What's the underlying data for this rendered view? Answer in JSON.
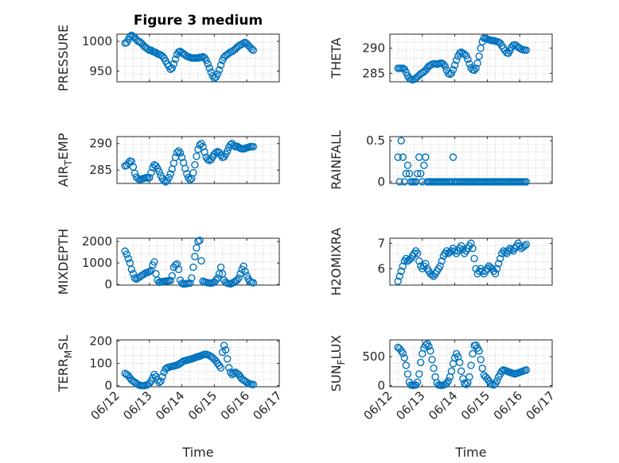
{
  "figure_title": "Figure 3 medium",
  "shared_x": {
    "label": "Time",
    "ticks": [
      "06/12",
      "06/13",
      "06/14",
      "06/15",
      "06/16",
      "06/17"
    ],
    "min": 0,
    "max": 5
  },
  "marker_color": "#0072BD",
  "chart_data": [
    {
      "id": "pressure",
      "type": "scatter",
      "ylabel": "PRESSURE",
      "title": "Figure 3 medium",
      "ylim": [
        932,
        1012
      ],
      "yticks": [
        950,
        1000
      ],
      "grid": true,
      "x": [
        0.25,
        0.3,
        0.35,
        0.4,
        0.45,
        0.5,
        0.55,
        0.6,
        0.65,
        0.7,
        0.75,
        0.8,
        0.85,
        0.9,
        0.95,
        1.0,
        1.05,
        1.1,
        1.15,
        1.2,
        1.25,
        1.3,
        1.35,
        1.4,
        1.45,
        1.5,
        1.55,
        1.6,
        1.65,
        1.7,
        1.75,
        1.8,
        1.85,
        1.9,
        1.95,
        2.0,
        2.05,
        2.1,
        2.15,
        2.2,
        2.25,
        2.3,
        2.35,
        2.4,
        2.45,
        2.5,
        2.55,
        2.6,
        2.65,
        2.7,
        2.75,
        2.8,
        2.85,
        2.9,
        2.95,
        3.0,
        3.05,
        3.1,
        3.15,
        3.2,
        3.25,
        3.3,
        3.35,
        3.4,
        3.45,
        3.5,
        3.55,
        3.6,
        3.65,
        3.7,
        3.75,
        3.8,
        3.85,
        3.9,
        3.95,
        4.0,
        4.05,
        4.1,
        4.15,
        4.2
      ],
      "y": [
        997,
        998,
        1003,
        1008,
        1010,
        1008,
        1006,
        1003,
        1000,
        999,
        997,
        994,
        991,
        989,
        987,
        985,
        985,
        983,
        982,
        981,
        979,
        978,
        977,
        975,
        972,
        967,
        962,
        958,
        953,
        955,
        962,
        970,
        978,
        982,
        983,
        981,
        979,
        977,
        975,
        974,
        973,
        972,
        972,
        972,
        972,
        972,
        973,
        973,
        974,
        972,
        968,
        962,
        955,
        948,
        942,
        938,
        940,
        945,
        952,
        960,
        968,
        973,
        976,
        978,
        980,
        982,
        983,
        985,
        987,
        990,
        992,
        994,
        995,
        997,
        998,
        996,
        993,
        990,
        987,
        985
      ]
    },
    {
      "id": "theta",
      "type": "scatter",
      "ylabel": "THETA",
      "ylim": [
        283.3,
        292.8
      ],
      "yticks": [
        285,
        290
      ],
      "grid": true,
      "x": [
        0.25,
        0.3,
        0.35,
        0.4,
        0.45,
        0.5,
        0.55,
        0.6,
        0.65,
        0.7,
        0.75,
        0.8,
        0.85,
        0.9,
        0.95,
        1.0,
        1.05,
        1.1,
        1.15,
        1.2,
        1.25,
        1.3,
        1.35,
        1.4,
        1.45,
        1.5,
        1.55,
        1.6,
        1.65,
        1.7,
        1.75,
        1.8,
        1.85,
        1.9,
        1.95,
        2.0,
        2.05,
        2.1,
        2.15,
        2.2,
        2.25,
        2.3,
        2.35,
        2.4,
        2.45,
        2.5,
        2.55,
        2.6,
        2.65,
        2.7,
        2.75,
        2.8,
        2.85,
        2.9,
        2.95,
        3.0,
        3.05,
        3.1,
        3.15,
        3.2,
        3.25,
        3.3,
        3.35,
        3.4,
        3.45,
        3.5,
        3.55,
        3.6,
        3.65,
        3.7,
        3.75,
        3.8,
        3.85,
        3.9,
        3.95,
        4.0,
        4.05,
        4.1,
        4.15,
        4.2
      ],
      "y": [
        286,
        286,
        286,
        286,
        285.8,
        285.2,
        284.5,
        284,
        283.8,
        283.7,
        283.8,
        284,
        284.3,
        284.6,
        284.9,
        285.1,
        285.3,
        285.6,
        286,
        286.4,
        286.6,
        286.8,
        286.9,
        286.9,
        286.8,
        286.9,
        287,
        287,
        286.8,
        286.4,
        285.6,
        285,
        284.8,
        285,
        285.7,
        286.6,
        287.6,
        288.4,
        289,
        289.2,
        289,
        288.8,
        288.5,
        287.8,
        286.9,
        286.1,
        285.7,
        285.6,
        286,
        287,
        288.4,
        290,
        291.3,
        292,
        291.9,
        291.8,
        291.7,
        291.6,
        291.5,
        291.5,
        291.4,
        291.3,
        291.2,
        291,
        290.5,
        290,
        289.5,
        289.1,
        289,
        289.5,
        290.2,
        290.6,
        290.7,
        290.5,
        290.2,
        290,
        289.8,
        289.7,
        289.6,
        289.6
      ]
    },
    {
      "id": "air_temp",
      "type": "scatter",
      "ylabel": "AIR_TEMP",
      "ylim": [
        282.5,
        291.3
      ],
      "yticks": [
        285,
        290
      ],
      "grid": true,
      "x": [
        0.25,
        0.3,
        0.35,
        0.4,
        0.45,
        0.5,
        0.55,
        0.6,
        0.65,
        0.7,
        0.75,
        0.8,
        0.85,
        0.9,
        0.95,
        1.0,
        1.05,
        1.1,
        1.15,
        1.2,
        1.25,
        1.3,
        1.35,
        1.4,
        1.45,
        1.5,
        1.55,
        1.6,
        1.65,
        1.7,
        1.75,
        1.8,
        1.85,
        1.9,
        1.95,
        2.0,
        2.05,
        2.1,
        2.15,
        2.2,
        2.25,
        2.3,
        2.35,
        2.4,
        2.45,
        2.5,
        2.55,
        2.6,
        2.65,
        2.7,
        2.75,
        2.8,
        2.85,
        2.9,
        2.95,
        3.0,
        3.05,
        3.1,
        3.15,
        3.2,
        3.25,
        3.3,
        3.35,
        3.4,
        3.45,
        3.5,
        3.55,
        3.6,
        3.65,
        3.7,
        3.75,
        3.8,
        3.85,
        3.9,
        3.95,
        4.0,
        4.05,
        4.1,
        4.15,
        4.2
      ],
      "y": [
        285.8,
        285.9,
        286.3,
        286.7,
        286.6,
        285.6,
        284.4,
        283.7,
        283.4,
        283.2,
        283.3,
        283.4,
        283.5,
        283.6,
        283.5,
        283.6,
        284.5,
        285.5,
        286,
        285.8,
        285.3,
        284.7,
        284,
        283.4,
        283,
        282.8,
        283,
        283.6,
        284.3,
        285.2,
        286.3,
        287.4,
        288.3,
        288.6,
        288.2,
        287.4,
        286.4,
        285.3,
        284.3,
        283.6,
        283.2,
        283.4,
        284.5,
        286,
        287.6,
        288.9,
        289.7,
        290,
        289.4,
        288.4,
        287.4,
        287,
        286.8,
        287,
        287.5,
        288,
        288.3,
        288.5,
        288.3,
        287.8,
        287.4,
        287.5,
        288,
        288.6,
        289.3,
        289.8,
        290,
        289.6,
        289.4,
        289.5,
        289.3,
        289.1,
        289,
        289,
        289.1,
        289.2,
        289.3,
        289.4,
        289.4,
        289.4
      ]
    },
    {
      "id": "rainfall",
      "type": "scatter",
      "ylabel": "RAINFALL",
      "ylim": [
        -0.02,
        0.55
      ],
      "yticks": [
        0,
        0.5
      ],
      "ytick_labels": [
        "0",
        "0.5"
      ],
      "grid": true,
      "x": [
        0.25,
        0.3,
        0.35,
        0.4,
        0.45,
        0.5,
        0.55,
        0.6,
        0.65,
        0.7,
        0.75,
        0.8,
        0.85,
        0.9,
        0.95,
        1.0,
        1.05,
        1.1,
        1.15,
        1.2,
        1.25,
        1.3,
        1.35,
        1.4,
        1.45,
        1.5,
        1.55,
        1.6,
        1.65,
        1.7,
        1.75,
        1.8,
        1.85,
        1.9,
        1.95,
        2.0,
        2.05,
        2.1,
        2.15,
        2.2,
        2.25,
        2.3,
        2.35,
        2.4,
        2.45,
        2.5,
        2.55,
        2.6,
        2.65,
        2.7,
        2.75,
        2.8,
        2.85,
        2.9,
        2.95,
        3.0,
        3.05,
        3.1,
        3.15,
        3.2,
        3.25,
        3.3,
        3.35,
        3.4,
        3.45,
        3.5,
        3.55,
        3.6,
        3.65,
        3.7,
        3.75,
        3.8,
        3.85,
        3.9,
        3.95,
        4.0,
        4.05,
        4.1,
        4.15,
        4.2
      ],
      "y": [
        0.3,
        0,
        0.5,
        0.3,
        0,
        0.1,
        0.2,
        0.1,
        0,
        0,
        0,
        0,
        0.1,
        0.3,
        0.1,
        0,
        0.2,
        0.3,
        0,
        0,
        0,
        0,
        0,
        0,
        0,
        0,
        0,
        0,
        0,
        0,
        0,
        0,
        0,
        0,
        0.3,
        0,
        0,
        0,
        0,
        0,
        0,
        0,
        0,
        0,
        0,
        0,
        0,
        0,
        0,
        0,
        0,
        0,
        0,
        0,
        0,
        0,
        0,
        0,
        0,
        0,
        0,
        0,
        0,
        0,
        0,
        0,
        0,
        0,
        0,
        0,
        0,
        0,
        0,
        0,
        0,
        0,
        0,
        0,
        0,
        0
      ]
    },
    {
      "id": "mixdepth",
      "type": "scatter",
      "ylabel": "MIXDEPTH",
      "ylim": [
        -30,
        2150
      ],
      "yticks": [
        0,
        1000,
        2000
      ],
      "grid": true,
      "x": [
        0.25,
        0.3,
        0.35,
        0.4,
        0.45,
        0.5,
        0.55,
        0.6,
        0.65,
        0.7,
        0.75,
        0.8,
        0.85,
        0.9,
        0.95,
        1.0,
        1.05,
        1.1,
        1.15,
        1.2,
        1.25,
        1.3,
        1.35,
        1.4,
        1.45,
        1.5,
        1.55,
        1.6,
        1.65,
        1.7,
        1.75,
        1.8,
        1.85,
        1.9,
        1.95,
        2.0,
        2.05,
        2.1,
        2.15,
        2.2,
        2.25,
        2.3,
        2.35,
        2.4,
        2.45,
        2.5,
        2.55,
        2.6,
        2.65,
        2.7,
        2.75,
        2.8,
        2.85,
        2.9,
        2.95,
        3.0,
        3.05,
        3.1,
        3.15,
        3.2,
        3.25,
        3.3,
        3.35,
        3.4,
        3.45,
        3.5,
        3.55,
        3.6,
        3.65,
        3.7,
        3.75,
        3.8,
        3.85,
        3.9,
        3.95,
        4.0,
        4.05,
        4.1,
        4.15,
        4.2
      ],
      "y": [
        1550,
        1400,
        1200,
        1000,
        700,
        500,
        300,
        250,
        300,
        350,
        400,
        450,
        500,
        550,
        560,
        600,
        650,
        900,
        1050,
        500,
        200,
        100,
        120,
        130,
        140,
        150,
        160,
        170,
        180,
        400,
        800,
        900,
        950,
        700,
        200,
        50,
        20,
        30,
        40,
        50,
        60,
        300,
        800,
        1300,
        1700,
        2000,
        2050,
        1100,
        150,
        120,
        100,
        80,
        70,
        60,
        80,
        120,
        200,
        300,
        500,
        800,
        500,
        200,
        100,
        60,
        40,
        30,
        60,
        100,
        150,
        200,
        300,
        500,
        700,
        850,
        600,
        400,
        250,
        150,
        100,
        80
      ]
    },
    {
      "id": "h2omixra",
      "type": "scatter",
      "ylabel": "H2OMIXRA",
      "ylim": [
        5.35,
        7.2
      ],
      "yticks": [
        6,
        7
      ],
      "grid": true,
      "x": [
        0.25,
        0.3,
        0.35,
        0.4,
        0.45,
        0.5,
        0.55,
        0.6,
        0.65,
        0.7,
        0.75,
        0.8,
        0.85,
        0.9,
        0.95,
        1.0,
        1.05,
        1.1,
        1.15,
        1.2,
        1.25,
        1.3,
        1.35,
        1.4,
        1.45,
        1.5,
        1.55,
        1.6,
        1.65,
        1.7,
        1.75,
        1.8,
        1.85,
        1.9,
        1.95,
        2.0,
        2.05,
        2.1,
        2.15,
        2.2,
        2.25,
        2.3,
        2.35,
        2.4,
        2.45,
        2.5,
        2.55,
        2.6,
        2.65,
        2.7,
        2.75,
        2.8,
        2.85,
        2.9,
        2.95,
        3.0,
        3.05,
        3.1,
        3.15,
        3.2,
        3.25,
        3.3,
        3.35,
        3.4,
        3.45,
        3.5,
        3.55,
        3.6,
        3.65,
        3.7,
        3.75,
        3.8,
        3.85,
        3.9,
        3.95,
        4.0,
        4.05,
        4.1,
        4.15,
        4.2
      ],
      "y": [
        5.5,
        5.7,
        5.9,
        6.1,
        6.3,
        6.4,
        6.3,
        6.35,
        6.4,
        6.5,
        6.6,
        6.7,
        6.6,
        6.3,
        6.1,
        6,
        6.1,
        6.2,
        6,
        5.9,
        5.8,
        5.75,
        5.7,
        5.8,
        5.9,
        6,
        6.1,
        6.3,
        6.5,
        6.6,
        6.7,
        6.6,
        6.65,
        6.7,
        6.8,
        6.7,
        6.6,
        6.7,
        6.8,
        6.9,
        6.75,
        6.6,
        6.7,
        6.8,
        6.9,
        7,
        6.8,
        6.4,
        6,
        5.8,
        5.9,
        6,
        5.9,
        5.8,
        5.9,
        6,
        6.1,
        6.05,
        6,
        5.9,
        5.8,
        6,
        6.2,
        6.4,
        6.6,
        6.7,
        6.65,
        6.6,
        6.7,
        6.8,
        6.75,
        6.7,
        6.8,
        6.9,
        7,
        6.9,
        6.8,
        6.85,
        6.9,
        6.95
      ]
    },
    {
      "id": "terr_msl",
      "type": "scatter",
      "ylabel": "TERR_MSL",
      "ylim": [
        -5,
        205
      ],
      "yticks": [
        0,
        100,
        200
      ],
      "grid": true,
      "x": [
        0.25,
        0.3,
        0.35,
        0.4,
        0.45,
        0.5,
        0.55,
        0.6,
        0.65,
        0.7,
        0.75,
        0.8,
        0.85,
        0.9,
        0.95,
        1.0,
        1.05,
        1.1,
        1.15,
        1.2,
        1.25,
        1.3,
        1.35,
        1.4,
        1.45,
        1.5,
        1.55,
        1.6,
        1.65,
        1.7,
        1.75,
        1.8,
        1.85,
        1.9,
        1.95,
        2.0,
        2.05,
        2.1,
        2.15,
        2.2,
        2.25,
        2.3,
        2.35,
        2.4,
        2.45,
        2.5,
        2.55,
        2.6,
        2.65,
        2.7,
        2.75,
        2.8,
        2.85,
        2.9,
        2.95,
        3.0,
        3.05,
        3.1,
        3.15,
        3.2,
        3.25,
        3.3,
        3.35,
        3.4,
        3.45,
        3.5,
        3.55,
        3.6,
        3.65,
        3.7,
        3.75,
        3.8,
        3.85,
        3.9,
        3.95,
        4.0,
        4.05,
        4.1,
        4.15,
        4.2
      ],
      "y": [
        55,
        50,
        45,
        35,
        25,
        20,
        15,
        10,
        5,
        2,
        0,
        0,
        0,
        2,
        5,
        10,
        20,
        35,
        50,
        40,
        25,
        15,
        20,
        40,
        60,
        75,
        80,
        82,
        85,
        87,
        88,
        90,
        92,
        95,
        100,
        105,
        110,
        112,
        114,
        116,
        118,
        120,
        122,
        125,
        128,
        130,
        132,
        135,
        138,
        140,
        140,
        138,
        135,
        130,
        125,
        118,
        110,
        100,
        90,
        80,
        150,
        180,
        160,
        120,
        80,
        60,
        50,
        55,
        60,
        55,
        50,
        40,
        30,
        25,
        20,
        15,
        10,
        8,
        6,
        5
      ]
    },
    {
      "id": "sun_flux",
      "type": "scatter",
      "ylabel": "SUN_FLUX",
      "ylim": [
        -20,
        790
      ],
      "yticks": [
        0,
        500
      ],
      "grid": true,
      "x": [
        0.25,
        0.3,
        0.35,
        0.4,
        0.45,
        0.5,
        0.55,
        0.6,
        0.65,
        0.7,
        0.75,
        0.8,
        0.85,
        0.9,
        0.95,
        1.0,
        1.05,
        1.1,
        1.15,
        1.2,
        1.25,
        1.3,
        1.35,
        1.4,
        1.45,
        1.5,
        1.55,
        1.6,
        1.65,
        1.7,
        1.75,
        1.8,
        1.85,
        1.9,
        1.95,
        2.0,
        2.05,
        2.1,
        2.15,
        2.2,
        2.25,
        2.3,
        2.35,
        2.4,
        2.45,
        2.5,
        2.55,
        2.6,
        2.65,
        2.7,
        2.75,
        2.8,
        2.85,
        2.9,
        2.95,
        3.0,
        3.05,
        3.1,
        3.15,
        3.2,
        3.25,
        3.3,
        3.35,
        3.4,
        3.45,
        3.5,
        3.55,
        3.6,
        3.65,
        3.7,
        3.75,
        3.8,
        3.85,
        3.9,
        3.95,
        4.0,
        4.05,
        4.1,
        4.15,
        4.2
      ],
      "y": [
        660,
        640,
        600,
        560,
        480,
        350,
        200,
        60,
        10,
        5,
        5,
        10,
        60,
        200,
        400,
        550,
        650,
        700,
        720,
        680,
        600,
        450,
        300,
        150,
        50,
        10,
        5,
        5,
        10,
        20,
        40,
        80,
        150,
        250,
        380,
        480,
        550,
        500,
        400,
        250,
        120,
        40,
        20,
        50,
        150,
        350,
        550,
        690,
        700,
        650,
        600,
        450,
        300,
        180,
        150,
        120,
        80,
        40,
        20,
        10,
        30,
        80,
        150,
        200,
        250,
        270,
        260,
        250,
        240,
        230,
        220,
        210,
        200,
        210,
        220,
        230,
        240,
        250,
        260,
        270
      ]
    }
  ]
}
